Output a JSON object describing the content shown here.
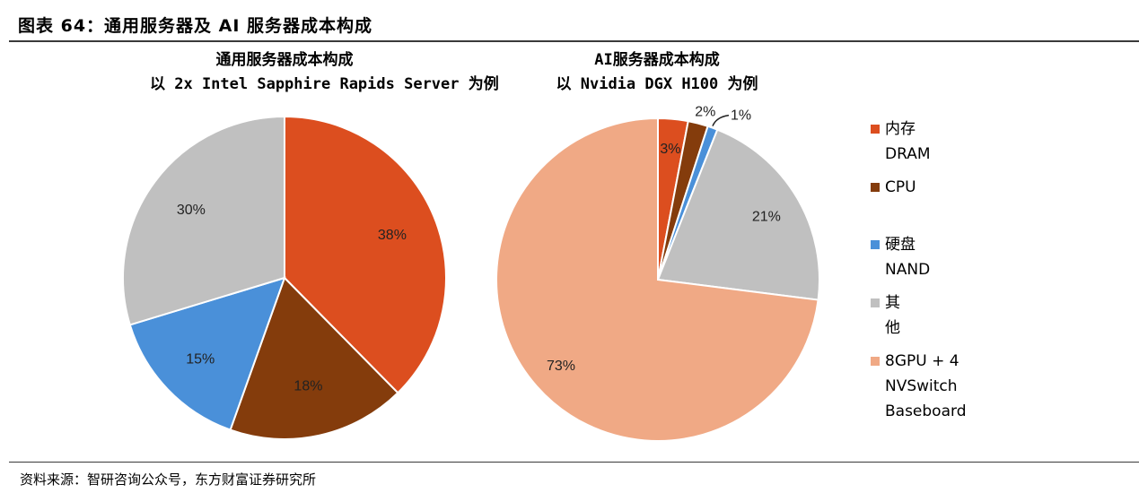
{
  "figure_title": "图表 64：通用服务器及 AI 服务器成本构成",
  "source_note": "资料来源：智研咨询公众号，东方财富证券研究所",
  "colors": {
    "dram": "#DC4E1F",
    "cpu": "#843C0C",
    "nand": "#4A90D9",
    "other": "#C0C0C0",
    "gpu": "#F0A985"
  },
  "legend": [
    {
      "key": "dram",
      "label": "内存 DRAM"
    },
    {
      "key": "cpu",
      "label": "CPU"
    },
    {
      "key": "nand",
      "label": "硬盘 NAND"
    },
    {
      "key": "other",
      "label": "其他"
    },
    {
      "key": "gpu",
      "label": "8GPU + 4 NVSwitch\nBaseboard"
    }
  ],
  "chart_data": [
    {
      "type": "pie",
      "title": "通用服务器成本构成",
      "subtitle": "以 2x Intel Sapphire Rapids Server 为例",
      "slices": [
        {
          "key": "dram",
          "value": 38,
          "label": "38%"
        },
        {
          "key": "cpu",
          "value": 18,
          "label": "18%"
        },
        {
          "key": "nand",
          "value": 15,
          "label": "15%"
        },
        {
          "key": "other",
          "value": 30,
          "label": "30%"
        }
      ]
    },
    {
      "type": "pie",
      "title": "AI服务器成本构成",
      "subtitle": "以 Nvidia DGX H100 为例",
      "slices": [
        {
          "key": "dram",
          "value": 3,
          "label": "3%"
        },
        {
          "key": "cpu",
          "value": 2,
          "label": "2%"
        },
        {
          "key": "nand",
          "value": 1,
          "label": "1%"
        },
        {
          "key": "other",
          "value": 21,
          "label": "21%"
        },
        {
          "key": "gpu",
          "value": 73,
          "label": "73%"
        }
      ]
    }
  ]
}
